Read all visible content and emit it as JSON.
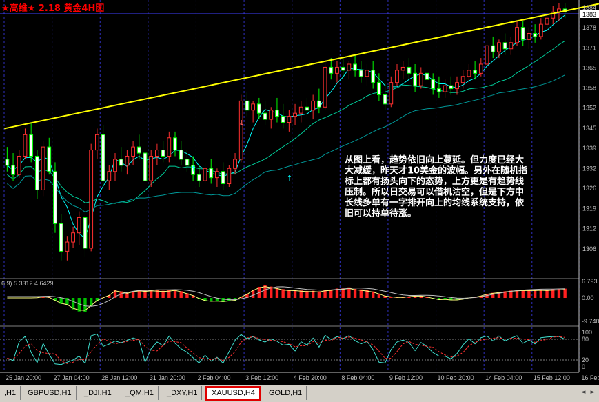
{
  "header": {
    "title": "★高维★  2.18  黄金4H图",
    "color": "#ff0000"
  },
  "annotation": {
    "text_lines": [
      "从图上看，趋势依旧向上蔓延。但力度已经大",
      "大减缓，昨天才10美金的波幅。另外在随机指",
      "标上都有扬头向下的态势，上方更是有趋势线",
      "压制。所以日交易可以借机沽空，但是下方中",
      "长线多单有一字排开向上的均线系统支持，依",
      "旧可以持单待涨。"
    ]
  },
  "chart_data": {
    "type": "candlestick",
    "symbol": "XAUUSD,H4",
    "ylim": [
      1297,
      1386
    ],
    "y_ticks": [
      "1384",
      "1378",
      "1371",
      "1365",
      "1358",
      "1352",
      "1345",
      "1339",
      "1332",
      "1326",
      "1319",
      "1312",
      "1306"
    ],
    "y_tick_values": [
      1384.4,
      1377.9,
      1371.3,
      1364.8,
      1358.2,
      1351.7,
      1345.1,
      1338.6,
      1332.0,
      1325.5,
      1318.9,
      1312.4,
      1305.8
    ],
    "current_price": "1383",
    "x_labels": [
      "25 Jan 20:00",
      "27 Jan 04:00",
      "28 Jan 12:00",
      "31 Jan 20:00",
      "2 Feb 04:00",
      "3 Feb 12:00",
      "4 Feb 20:00",
      "8 Feb 04:00",
      "9 Feb 12:00",
      "10 Feb 20:00",
      "14 Feb 04:00",
      "15 Feb 12:00",
      "16 Feb 20:00"
    ],
    "x_label_positions": [
      0,
      8,
      16,
      24,
      32,
      40,
      48,
      56,
      64,
      72,
      80,
      88,
      96
    ],
    "candles": [
      [
        1335,
        1339,
        1331,
        1333
      ],
      [
        1333,
        1337,
        1328,
        1330
      ],
      [
        1330,
        1338,
        1329,
        1336
      ],
      [
        1336,
        1345,
        1335,
        1343
      ],
      [
        1343,
        1347,
        1334,
        1336
      ],
      [
        1336,
        1338,
        1322,
        1325
      ],
      [
        1325,
        1341,
        1323,
        1339
      ],
      [
        1339,
        1342,
        1330,
        1331
      ],
      [
        1331,
        1334,
        1311,
        1314
      ],
      [
        1314,
        1317,
        1302,
        1305
      ],
      [
        1305,
        1310,
        1302,
        1308
      ],
      [
        1308,
        1313,
        1306,
        1311
      ],
      [
        1311,
        1318,
        1307,
        1316
      ],
      [
        1316,
        1320,
        1303,
        1306
      ],
      [
        1306,
        1340,
        1305,
        1338
      ],
      [
        1338,
        1345,
        1335,
        1343
      ],
      [
        1343,
        1346,
        1326,
        1328
      ],
      [
        1328,
        1333,
        1325,
        1331
      ],
      [
        1331,
        1337,
        1328,
        1335
      ],
      [
        1335,
        1339,
        1331,
        1333
      ],
      [
        1333,
        1338,
        1330,
        1336
      ],
      [
        1336,
        1341,
        1333,
        1339
      ],
      [
        1339,
        1343,
        1335,
        1337
      ],
      [
        1337,
        1341,
        1325,
        1328
      ],
      [
        1328,
        1338,
        1326,
        1336
      ],
      [
        1336,
        1340,
        1333,
        1338
      ],
      [
        1338,
        1341,
        1334,
        1336
      ],
      [
        1336,
        1344,
        1334,
        1342
      ],
      [
        1342,
        1344,
        1336,
        1338
      ],
      [
        1338,
        1341,
        1333,
        1335
      ],
      [
        1335,
        1338,
        1331,
        1333
      ],
      [
        1333,
        1336,
        1328,
        1330
      ],
      [
        1330,
        1333,
        1326,
        1328
      ],
      [
        1328,
        1334,
        1327,
        1332
      ],
      [
        1332,
        1335,
        1327,
        1329
      ],
      [
        1329,
        1332,
        1326,
        1331
      ],
      [
        1331,
        1334,
        1325,
        1327
      ],
      [
        1327,
        1333,
        1326,
        1332
      ],
      [
        1332,
        1337,
        1330,
        1335
      ],
      [
        1335,
        1356,
        1334,
        1354
      ],
      [
        1354,
        1357,
        1349,
        1351
      ],
      [
        1351,
        1354,
        1347,
        1353
      ],
      [
        1353,
        1355,
        1348,
        1350
      ],
      [
        1350,
        1354,
        1346,
        1348
      ],
      [
        1348,
        1352,
        1345,
        1351
      ],
      [
        1351,
        1355,
        1347,
        1349
      ],
      [
        1349,
        1353,
        1345,
        1347
      ],
      [
        1347,
        1351,
        1344,
        1349
      ],
      [
        1349,
        1353,
        1346,
        1350
      ],
      [
        1350,
        1354,
        1347,
        1352
      ],
      [
        1352,
        1355,
        1349,
        1351
      ],
      [
        1351,
        1356,
        1348,
        1354
      ],
      [
        1354,
        1358,
        1350,
        1352
      ],
      [
        1352,
        1367,
        1351,
        1365
      ],
      [
        1365,
        1368,
        1361,
        1363
      ],
      [
        1363,
        1367,
        1360,
        1365
      ],
      [
        1365,
        1368,
        1362,
        1364
      ],
      [
        1364,
        1367,
        1361,
        1366
      ],
      [
        1366,
        1369,
        1362,
        1364
      ],
      [
        1364,
        1367,
        1360,
        1362
      ],
      [
        1362,
        1366,
        1359,
        1364
      ],
      [
        1364,
        1367,
        1358,
        1360
      ],
      [
        1360,
        1363,
        1354,
        1356
      ],
      [
        1356,
        1360,
        1351,
        1353
      ],
      [
        1353,
        1362,
        1352,
        1360
      ],
      [
        1360,
        1366,
        1359,
        1364
      ],
      [
        1364,
        1367,
        1361,
        1365
      ],
      [
        1365,
        1368,
        1361,
        1363
      ],
      [
        1363,
        1366,
        1357,
        1359
      ],
      [
        1359,
        1365,
        1358,
        1363
      ],
      [
        1363,
        1366,
        1360,
        1361
      ],
      [
        1361,
        1363,
        1356,
        1358
      ],
      [
        1358,
        1362,
        1355,
        1357
      ],
      [
        1357,
        1361,
        1355,
        1359
      ],
      [
        1359,
        1362,
        1356,
        1358
      ],
      [
        1358,
        1362,
        1356,
        1360
      ],
      [
        1360,
        1364,
        1358,
        1362
      ],
      [
        1362,
        1366,
        1360,
        1364
      ],
      [
        1364,
        1367,
        1361,
        1363
      ],
      [
        1363,
        1368,
        1362,
        1366
      ],
      [
        1366,
        1374,
        1365,
        1372
      ],
      [
        1372,
        1375,
        1368,
        1370
      ],
      [
        1370,
        1374,
        1368,
        1373
      ],
      [
        1373,
        1376,
        1369,
        1371
      ],
      [
        1371,
        1375,
        1369,
        1373
      ],
      [
        1373,
        1380,
        1372,
        1378
      ],
      [
        1378,
        1380,
        1372,
        1374
      ],
      [
        1374,
        1378,
        1371,
        1376
      ],
      [
        1376,
        1379,
        1373,
        1375
      ],
      [
        1375,
        1381,
        1374,
        1379
      ],
      [
        1379,
        1383,
        1377,
        1381
      ],
      [
        1381,
        1385,
        1379,
        1383
      ],
      [
        1383,
        1386,
        1380,
        1384
      ],
      [
        1384,
        1386,
        1381,
        1383
      ]
    ],
    "overlay_line": {
      "color": "#ffff00",
      "from": [
        0,
        1345
      ],
      "to": [
        99,
        1386
      ]
    },
    "panels": [
      {
        "name": "MACD-like",
        "label": "6,9) 5.3312 4.6429",
        "ticks": [
          "6.793",
          "0.00",
          "-9.740"
        ],
        "tick_values": [
          6.793,
          0.0,
          -9.74
        ]
      },
      {
        "name": "Stochastic",
        "ticks": [
          "100",
          "80",
          "20",
          "0"
        ],
        "tick_values": [
          100,
          80,
          20,
          0
        ]
      }
    ]
  },
  "tabs": {
    "items": [
      {
        "label": ",H1",
        "active": false
      },
      {
        "label": "GBPUSD,H1",
        "active": false
      },
      {
        "label": "_DJI,H1",
        "active": false
      },
      {
        "label": "_QM,H1",
        "active": false
      },
      {
        "label": "_DXY,H1",
        "active": false
      },
      {
        "label": "XAUUSD,H4",
        "active": true
      },
      {
        "label": "GOLD,H1",
        "active": false
      }
    ]
  },
  "colors": {
    "bull_body": "#000000",
    "bull_outline": "#ff3030",
    "bear_body": "#ffffff",
    "bear_outline": "#00ff00",
    "grid": "#3030c0",
    "ma_fast": "#00ffff",
    "ma_mid": "#00cc99",
    "ma_slow": "#009999"
  }
}
